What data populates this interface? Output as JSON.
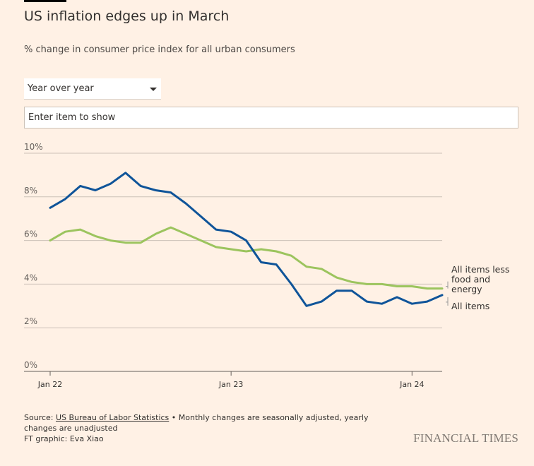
{
  "header": {
    "title": "US inflation edges up in March",
    "subtitle": "% change in consumer price index for all urban consumers"
  },
  "controls": {
    "mode_select_value": "Year over year",
    "item_input_placeholder": "Enter item to show"
  },
  "chart_data": {
    "type": "line",
    "x": [
      "2022-01",
      "2022-02",
      "2022-03",
      "2022-04",
      "2022-05",
      "2022-06",
      "2022-07",
      "2022-08",
      "2022-09",
      "2022-10",
      "2022-11",
      "2022-12",
      "2023-01",
      "2023-02",
      "2023-03",
      "2023-04",
      "2023-05",
      "2023-06",
      "2023-07",
      "2023-08",
      "2023-09",
      "2023-10",
      "2023-11",
      "2023-12",
      "2024-01",
      "2024-02",
      "2024-03"
    ],
    "series": [
      {
        "name": "All items less food and energy",
        "color": "#9cc45e",
        "values": [
          6.0,
          6.4,
          6.5,
          6.2,
          6.0,
          5.9,
          5.9,
          6.3,
          6.6,
          6.3,
          6.0,
          5.7,
          5.6,
          5.5,
          5.6,
          5.5,
          5.3,
          4.8,
          4.7,
          4.3,
          4.1,
          4.0,
          4.0,
          3.9,
          3.9,
          3.8,
          3.8
        ]
      },
      {
        "name": "All items",
        "color": "#0f5499",
        "values": [
          7.5,
          7.9,
          8.5,
          8.3,
          8.6,
          9.1,
          8.5,
          8.3,
          8.2,
          7.7,
          7.1,
          6.5,
          6.4,
          6.0,
          5.0,
          4.9,
          4.0,
          3.0,
          3.2,
          3.7,
          3.7,
          3.2,
          3.1,
          3.4,
          3.1,
          3.2,
          3.5
        ]
      }
    ],
    "xticks": [
      {
        "x": "2022-01",
        "label": "Jan 22"
      },
      {
        "x": "2023-01",
        "label": "Jan 23"
      },
      {
        "x": "2024-01",
        "label": "Jan 24"
      }
    ],
    "yticks": [
      {
        "v": 0,
        "label": "0%"
      },
      {
        "v": 2,
        "label": "2%"
      },
      {
        "v": 4,
        "label": "4%"
      },
      {
        "v": 6,
        "label": "6%"
      },
      {
        "v": 8,
        "label": "8%"
      },
      {
        "v": 10,
        "label": "10%"
      }
    ],
    "ylim": [
      0,
      10
    ],
    "grid": true,
    "legend": "direct labels at right end of lines"
  },
  "footer": {
    "source_prefix": "Source: ",
    "source_link": "US Bureau of Labor Statistics",
    "source_note": " • Monthly changes are seasonally adjusted, yearly changes are unadjusted",
    "credit": "FT graphic: Eva Xiao",
    "brand": "FINANCIAL TIMES"
  }
}
